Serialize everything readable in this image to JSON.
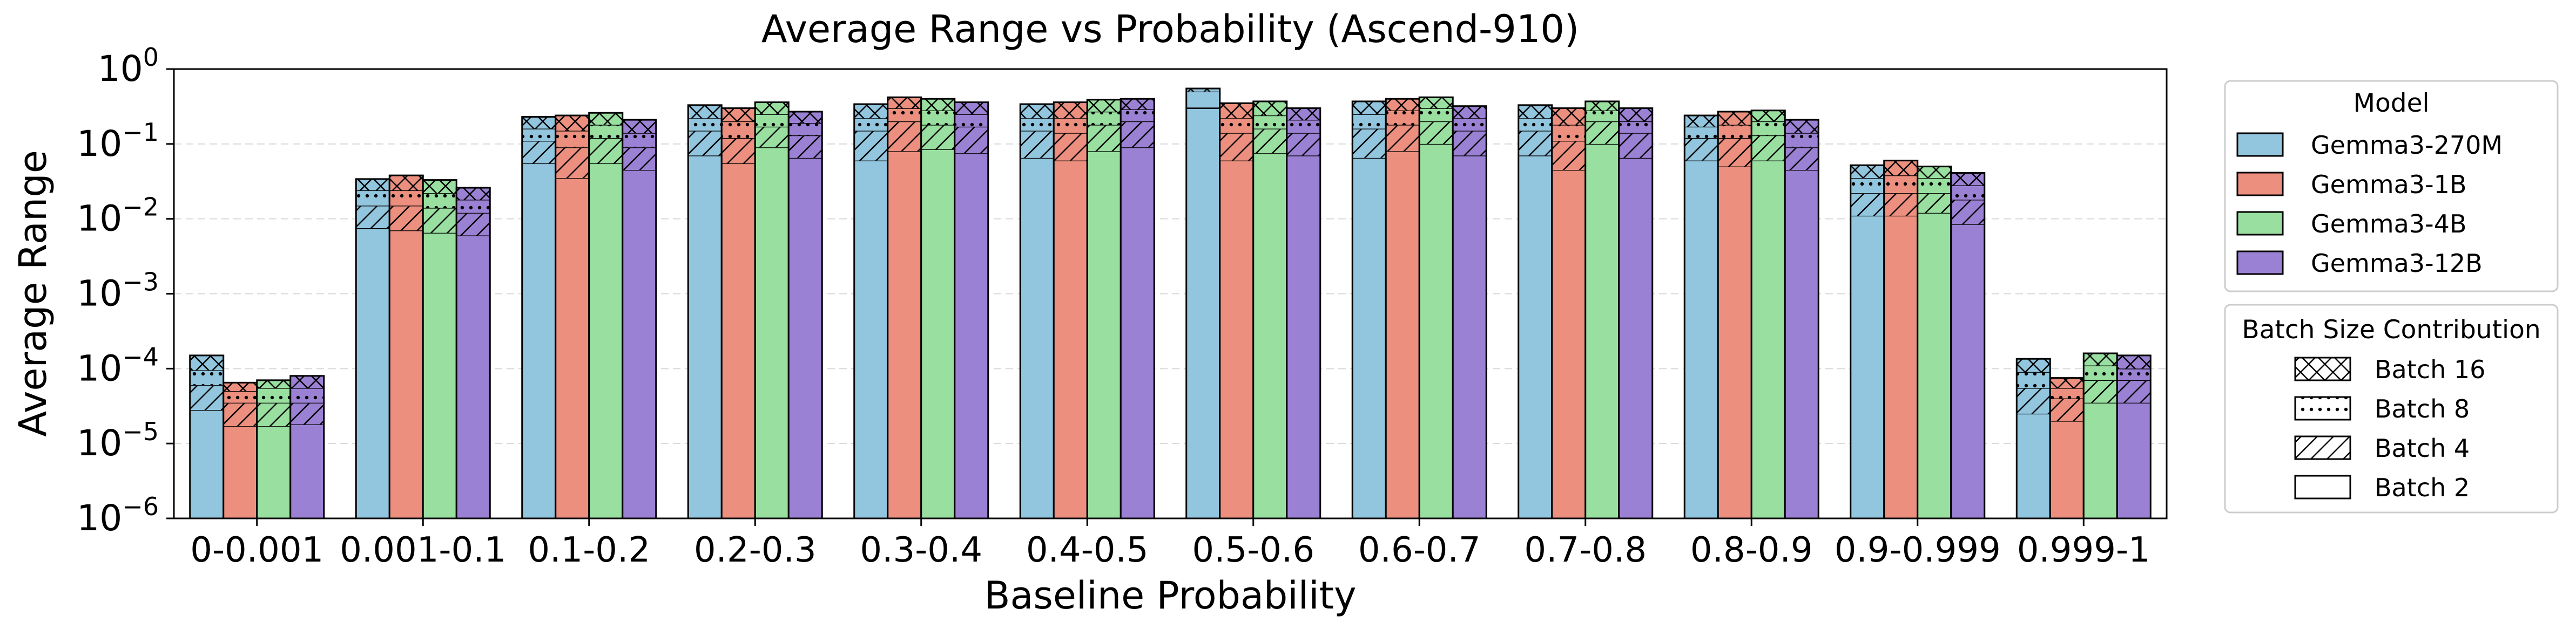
{
  "chart_data": {
    "type": "bar",
    "title": "Average Range vs Probability (Ascend-910)",
    "xlabel": "Baseline Probability",
    "ylabel": "Average Range",
    "y_scale": "log",
    "ylim": [
      1e-06,
      1
    ],
    "y_ticks": [
      {
        "value": 1e-06,
        "base": "10",
        "exp": "−6"
      },
      {
        "value": 1e-05,
        "base": "10",
        "exp": "−5"
      },
      {
        "value": 0.0001,
        "base": "10",
        "exp": "−4"
      },
      {
        "value": 0.001,
        "base": "10",
        "exp": "−3"
      },
      {
        "value": 0.01,
        "base": "10",
        "exp": "−2"
      },
      {
        "value": 0.1,
        "base": "10",
        "exp": "−1"
      },
      {
        "value": 1,
        "base": "10",
        "exp": "0"
      }
    ],
    "grid": "horizontal dashed",
    "categories": [
      "0-0.001",
      "0.001-0.1",
      "0.1-0.2",
      "0.2-0.3",
      "0.3-0.4",
      "0.4-0.5",
      "0.5-0.6",
      "0.6-0.7",
      "0.7-0.8",
      "0.8-0.9",
      "0.9-0.999",
      "0.999-1"
    ],
    "stack_levels": [
      "Batch 2",
      "Batch 4",
      "Batch 8",
      "Batch 16"
    ],
    "series": [
      {
        "name": "Gemma3-270M",
        "color": "#92c5de",
        "values": [
          [
            2.8e-05,
            6e-05,
            9.5e-05,
            0.00015
          ],
          [
            0.0075,
            0.015,
            0.024,
            0.034
          ],
          [
            0.055,
            0.11,
            0.16,
            0.23
          ],
          [
            0.07,
            0.15,
            0.22,
            0.33
          ],
          [
            0.06,
            0.15,
            0.22,
            0.34
          ],
          [
            0.065,
            0.15,
            0.22,
            0.34
          ],
          [
            0.5,
            0.5,
            0.3,
            0.55
          ],
          [
            0.065,
            0.16,
            0.25,
            0.37
          ],
          [
            0.07,
            0.15,
            0.22,
            0.33
          ],
          [
            0.06,
            0.12,
            0.17,
            0.24
          ],
          [
            0.011,
            0.022,
            0.035,
            0.052
          ],
          [
            2.5e-05,
            5.5e-05,
            9e-05,
            0.000135
          ]
        ]
      },
      {
        "name": "Gemma3-1B",
        "color": "#ec8f7e",
        "values": [
          [
            1.7e-05,
            3.5e-05,
            5e-05,
            6.5e-05
          ],
          [
            0.007,
            0.015,
            0.024,
            0.038
          ],
          [
            0.035,
            0.09,
            0.15,
            0.24
          ],
          [
            0.055,
            0.12,
            0.2,
            0.3
          ],
          [
            0.08,
            0.2,
            0.3,
            0.42
          ],
          [
            0.06,
            0.14,
            0.22,
            0.36
          ],
          [
            0.06,
            0.14,
            0.22,
            0.35
          ],
          [
            0.08,
            0.18,
            0.28,
            0.4
          ],
          [
            0.045,
            0.11,
            0.18,
            0.3
          ],
          [
            0.05,
            0.12,
            0.18,
            0.27
          ],
          [
            0.011,
            0.022,
            0.038,
            0.06
          ],
          [
            2e-05,
            4e-05,
            5.5e-05,
            7.5e-05
          ]
        ]
      },
      {
        "name": "Gemma3-4B",
        "color": "#99e0a0",
        "values": [
          [
            1.7e-05,
            3.5e-05,
            5.5e-05,
            7e-05
          ],
          [
            0.0065,
            0.014,
            0.022,
            0.033
          ],
          [
            0.055,
            0.12,
            0.18,
            0.26
          ],
          [
            0.09,
            0.17,
            0.25,
            0.36
          ],
          [
            0.085,
            0.18,
            0.28,
            0.4
          ],
          [
            0.08,
            0.18,
            0.27,
            0.39
          ],
          [
            0.075,
            0.16,
            0.24,
            0.37
          ],
          [
            0.1,
            0.2,
            0.3,
            0.42
          ],
          [
            0.1,
            0.2,
            0.28,
            0.37
          ],
          [
            0.06,
            0.13,
            0.2,
            0.28
          ],
          [
            0.012,
            0.022,
            0.035,
            0.05
          ],
          [
            3.5e-05,
            7e-05,
            0.00011,
            0.00016
          ]
        ]
      },
      {
        "name": "Gemma3-12B",
        "color": "#9b81d3",
        "values": [
          [
            1.8e-05,
            3.5e-05,
            5.5e-05,
            8e-05
          ],
          [
            0.006,
            0.012,
            0.018,
            0.026
          ],
          [
            0.045,
            0.09,
            0.14,
            0.21
          ],
          [
            0.065,
            0.13,
            0.19,
            0.27
          ],
          [
            0.075,
            0.17,
            0.25,
            0.36
          ],
          [
            0.09,
            0.2,
            0.29,
            0.4
          ],
          [
            0.07,
            0.14,
            0.21,
            0.3
          ],
          [
            0.07,
            0.15,
            0.22,
            0.32
          ],
          [
            0.065,
            0.14,
            0.2,
            0.3
          ],
          [
            0.045,
            0.09,
            0.14,
            0.21
          ],
          [
            0.0085,
            0.018,
            0.028,
            0.041
          ],
          [
            3.5e-05,
            7e-05,
            0.0001,
            0.00015
          ]
        ]
      }
    ],
    "legend_model": {
      "title": "Model",
      "placement": "right-top"
    },
    "legend_batch": {
      "title": "Batch Size Contribution",
      "placement": "right-middle",
      "entries": [
        {
          "label": "Batch 16",
          "hatch": "cross"
        },
        {
          "label": "Batch 8",
          "hatch": "dots"
        },
        {
          "label": "Batch 4",
          "hatch": "diagonal"
        },
        {
          "label": "Batch 2",
          "hatch": "none"
        }
      ]
    }
  }
}
